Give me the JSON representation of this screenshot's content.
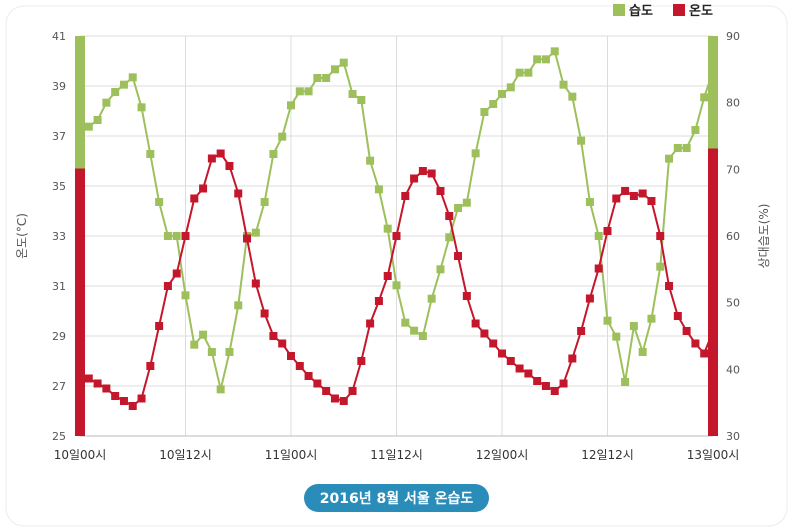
{
  "chart_data": {
    "type": "line",
    "title": "2016년 8월 서울 온습도",
    "x_tick_labels": [
      "10일00시",
      "10일12시",
      "11일00시",
      "11일12시",
      "12일00시",
      "12일12시",
      "13일00시"
    ],
    "x_range_hours": [
      0,
      72
    ],
    "y_left": {
      "label": "온도(°C)",
      "ylim": [
        25,
        41
      ],
      "ticks": [
        25,
        27,
        29,
        31,
        33,
        35,
        37,
        39,
        41
      ]
    },
    "y_right": {
      "label": "상대습도(%)",
      "ylim": [
        30,
        90
      ],
      "ticks": [
        30,
        40,
        50,
        60,
        70,
        80,
        90
      ]
    },
    "grid": true,
    "legend_position": "top-right",
    "series": [
      {
        "name": "습도",
        "axis": "right",
        "color": "#9dc05c",
        "x": [
          1,
          2,
          3,
          4,
          5,
          6,
          7,
          8,
          9,
          10,
          11,
          12,
          13,
          14,
          15,
          16,
          17,
          18,
          19,
          20,
          21,
          22,
          23,
          24,
          25,
          26,
          27,
          28,
          29,
          30,
          31,
          32,
          33,
          34,
          35,
          36,
          37,
          38,
          39,
          40,
          41,
          42,
          43,
          44,
          45,
          46,
          47,
          48,
          49,
          50,
          51,
          52,
          53,
          54,
          55,
          56,
          57,
          58,
          59,
          60,
          61,
          62,
          63,
          64,
          65,
          66,
          67,
          68,
          69,
          70,
          71,
          72
        ],
        "values": [
          76.4,
          77.4,
          80,
          81.6,
          82.7,
          83.8,
          79.3,
          72.3,
          65.1,
          60,
          60,
          51.1,
          43.7,
          45.2,
          42.6,
          37,
          42.6,
          49.6,
          60,
          60.5,
          65.1,
          72.3,
          74.9,
          79.6,
          81.7,
          81.7,
          83.7,
          83.7,
          85,
          86,
          81.3,
          80.4,
          71.3,
          67,
          61.1,
          52.6,
          47,
          45.8,
          45,
          50.6,
          55,
          59.8,
          64.2,
          65,
          72.4,
          78.6,
          79.8,
          81.3,
          82.3,
          84.5,
          84.5,
          86.5,
          86.5,
          87.7,
          82.7,
          80.9,
          74.3,
          65.1,
          60,
          47.3,
          44.9,
          38.1,
          46.5,
          42.6,
          47.6,
          55.4,
          71.6,
          73.2,
          73.2,
          75.9,
          80.8,
          84.7
        ]
      },
      {
        "name": "온도",
        "axis": "left",
        "color": "#c4172c",
        "x": [
          1,
          2,
          3,
          4,
          5,
          6,
          7,
          8,
          9,
          10,
          11,
          12,
          13,
          14,
          15,
          16,
          17,
          18,
          19,
          20,
          21,
          22,
          23,
          24,
          25,
          26,
          27,
          28,
          29,
          30,
          31,
          32,
          33,
          34,
          35,
          36,
          37,
          38,
          39,
          40,
          41,
          42,
          43,
          44,
          45,
          46,
          47,
          48,
          49,
          50,
          51,
          52,
          53,
          54,
          55,
          56,
          57,
          58,
          59,
          60,
          61,
          62,
          63,
          64,
          65,
          66,
          67,
          68,
          69,
          70,
          71,
          72
        ],
        "values": [
          27.3,
          27.1,
          26.9,
          26.6,
          26.4,
          26.2,
          26.5,
          27.8,
          29.4,
          31,
          31.5,
          33,
          34.5,
          34.9,
          36.1,
          36.3,
          35.8,
          34.7,
          32.9,
          31.1,
          29.9,
          29,
          28.7,
          28.2,
          27.8,
          27.4,
          27.1,
          26.8,
          26.5,
          26.4,
          26.8,
          28,
          29.5,
          30.4,
          31.4,
          33,
          34.6,
          35.3,
          35.6,
          35.5,
          34.8,
          33.8,
          32.2,
          30.6,
          29.5,
          29.1,
          28.7,
          28.3,
          28,
          27.7,
          27.5,
          27.2,
          27,
          26.8,
          27.1,
          28.1,
          29.2,
          30.5,
          31.7,
          33.2,
          34.5,
          34.8,
          34.6,
          34.7,
          34.4,
          33,
          31,
          29.8,
          29.2,
          28.7,
          28.3,
          29.2
        ]
      }
    ]
  }
}
